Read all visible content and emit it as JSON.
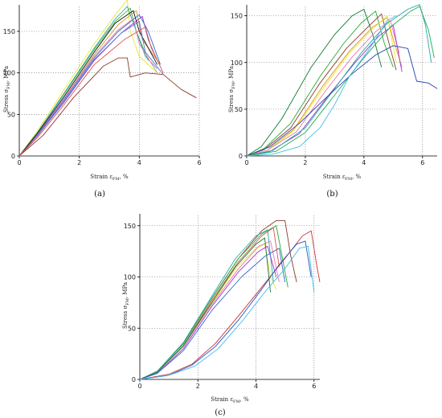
{
  "chart_data": [
    {
      "panel": "(a)",
      "type": "line",
      "xlabel": "Strain ε_FM, %",
      "ylabel": "Stress σ_FM, MPa",
      "xlim": [
        0,
        6
      ],
      "ylim": [
        0,
        180
      ],
      "xticks": [
        0,
        2,
        4,
        6
      ],
      "yticks": [
        0,
        50,
        100,
        150
      ],
      "grid": true,
      "series": [
        {
          "color": "#e8e830",
          "x": [
            0,
            0.6,
            1.5,
            2.5,
            3.2,
            3.6,
            3.7,
            4.0,
            4.6
          ],
          "y": [
            0,
            30,
            80,
            135,
            170,
            188,
            150,
            120,
            100
          ]
        },
        {
          "color": "#44aa44",
          "x": [
            0,
            0.6,
            1.5,
            2.5,
            3.2,
            3.7,
            3.9,
            4.3
          ],
          "y": [
            0,
            28,
            75,
            128,
            162,
            178,
            150,
            115
          ]
        },
        {
          "color": "#cc9922",
          "x": [
            0,
            0.6,
            1.5,
            2.5,
            3.3,
            3.9,
            4.1,
            4.7
          ],
          "y": [
            0,
            26,
            70,
            122,
            158,
            175,
            140,
            110
          ]
        },
        {
          "color": "#22aaaa",
          "x": [
            0,
            0.6,
            1.5,
            2.5,
            3.2,
            3.6,
            3.8,
            4.2,
            4.6
          ],
          "y": [
            0,
            28,
            76,
            130,
            165,
            180,
            160,
            120,
            105
          ]
        },
        {
          "color": "#3366cc",
          "x": [
            0,
            0.6,
            1.5,
            2.5,
            3.3,
            4.0,
            4.3,
            4.7
          ],
          "y": [
            0,
            25,
            68,
            118,
            150,
            170,
            150,
            110
          ]
        },
        {
          "color": "#9933cc",
          "x": [
            0,
            0.6,
            1.5,
            2.5,
            3.4,
            4.1,
            4.3,
            4.6
          ],
          "y": [
            0,
            24,
            65,
            115,
            148,
            168,
            140,
            115
          ]
        },
        {
          "color": "#ee77aa",
          "x": [
            0,
            0.6,
            1.5,
            2.5,
            3.3,
            3.8,
            4.0,
            4.6
          ],
          "y": [
            0,
            26,
            70,
            120,
            152,
            165,
            135,
            100
          ]
        },
        {
          "color": "#111111",
          "x": [
            0,
            0.6,
            1.5,
            2.5,
            3.2,
            3.8,
            4.0,
            4.6
          ],
          "y": [
            0,
            27,
            72,
            125,
            160,
            175,
            150,
            110
          ]
        },
        {
          "color": "#8b3a2a",
          "x": [
            0,
            0.8,
            1.8,
            2.8,
            3.3,
            3.6,
            3.7,
            4.2,
            4.8,
            5.4,
            5.9
          ],
          "y": [
            0,
            25,
            70,
            108,
            118,
            118,
            95,
            100,
            98,
            80,
            70
          ]
        },
        {
          "color": "#5577dd",
          "x": [
            0,
            0.6,
            1.5,
            2.5,
            3.4,
            4.0,
            4.2,
            4.8
          ],
          "y": [
            0,
            24,
            66,
            116,
            148,
            162,
            125,
            98
          ]
        },
        {
          "color": "#dd5544",
          "x": [
            0,
            0.6,
            1.5,
            2.5,
            3.5,
            4.2,
            4.4,
            4.8
          ],
          "y": [
            0,
            22,
            62,
            110,
            140,
            155,
            130,
            100
          ]
        }
      ]
    },
    {
      "panel": "(b)",
      "type": "line",
      "xlabel": "Strain ε_FM, %",
      "ylabel": "Stress σ_FM, MPa",
      "xlim": [
        0,
        6.5
      ],
      "ylim": [
        0,
        160
      ],
      "xticks": [
        0,
        2,
        4,
        6
      ],
      "yticks": [
        0,
        50,
        100,
        150
      ],
      "grid": true,
      "series": [
        {
          "color": "#117733",
          "x": [
            0,
            0.5,
            1.2,
            2.2,
            3.0,
            3.6,
            4.0,
            4.3,
            4.6
          ],
          "y": [
            0,
            10,
            40,
            95,
            130,
            150,
            157,
            130,
            95
          ]
        },
        {
          "color": "#22aa33",
          "x": [
            0,
            0.6,
            1.5,
            2.5,
            3.3,
            3.9,
            4.4,
            4.7,
            5.0
          ],
          "y": [
            0,
            8,
            35,
            85,
            120,
            142,
            155,
            120,
            95
          ]
        },
        {
          "color": "#8b3a2a",
          "x": [
            0,
            0.6,
            1.5,
            2.5,
            3.4,
            4.2,
            4.6,
            4.9,
            5.1
          ],
          "y": [
            0,
            7,
            30,
            78,
            115,
            140,
            152,
            115,
            92
          ]
        },
        {
          "color": "#dd9922",
          "x": [
            0,
            0.7,
            1.6,
            2.6,
            3.5,
            4.3,
            4.8,
            5.0,
            5.3
          ],
          "y": [
            0,
            6,
            28,
            75,
            112,
            138,
            148,
            125,
            95
          ]
        },
        {
          "color": "#e8e830",
          "x": [
            0,
            0.7,
            1.6,
            2.6,
            3.5,
            4.3,
            4.8,
            5.1
          ],
          "y": [
            0,
            6,
            27,
            72,
            110,
            136,
            150,
            100
          ]
        },
        {
          "color": "#ee77aa",
          "x": [
            0,
            0.7,
            1.7,
            2.7,
            3.6,
            4.4,
            4.9,
            5.2
          ],
          "y": [
            0,
            6,
            26,
            70,
            106,
            133,
            145,
            110
          ]
        },
        {
          "color": "#9933cc",
          "x": [
            0,
            0.8,
            1.8,
            2.8,
            3.7,
            4.5,
            5.0,
            5.3
          ],
          "y": [
            0,
            5,
            24,
            65,
            100,
            128,
            140,
            90
          ]
        },
        {
          "color": "#22aaaa",
          "x": [
            0,
            0.9,
            2.0,
            3.0,
            3.9,
            4.8,
            5.5,
            5.9,
            6.1,
            6.3
          ],
          "y": [
            0,
            6,
            30,
            72,
            110,
            142,
            157,
            162,
            140,
            100
          ]
        },
        {
          "color": "#22aa55",
          "x": [
            0,
            1.0,
            2.0,
            3.0,
            4.0,
            4.9,
            5.6,
            5.9,
            6.2,
            6.4
          ],
          "y": [
            0,
            5,
            25,
            65,
            105,
            138,
            155,
            160,
            135,
            105
          ]
        },
        {
          "color": "#2244aa",
          "x": [
            0,
            0.8,
            1.8,
            2.8,
            3.6,
            4.4,
            5.0,
            5.5,
            5.8,
            6.2,
            6.5
          ],
          "y": [
            0,
            10,
            35,
            65,
            88,
            108,
            118,
            115,
            80,
            78,
            72
          ]
        },
        {
          "color": "#44bbee",
          "x": [
            0,
            0.9,
            1.8,
            2.5,
            3.0,
            3.5,
            4.2,
            4.8,
            5.1
          ],
          "y": [
            0,
            2,
            10,
            30,
            55,
            85,
            115,
            145,
            150
          ]
        }
      ]
    },
    {
      "panel": "(c)",
      "type": "line",
      "xlabel": "Strain ε_FM, %",
      "ylabel": "Stress σ_FM, MPa",
      "xlim": [
        0,
        6.2
      ],
      "ylim": [
        0,
        160
      ],
      "xticks": [
        0,
        2,
        4,
        6
      ],
      "yticks": [
        0,
        50,
        100,
        150
      ],
      "grid": true,
      "series": [
        {
          "color": "#8b3a2a",
          "x": [
            0,
            0.6,
            1.5,
            2.5,
            3.4,
            4.2,
            4.7,
            5.0,
            5.2,
            5.4
          ],
          "y": [
            0,
            8,
            35,
            80,
            118,
            145,
            155,
            155,
            120,
            95
          ]
        },
        {
          "color": "#22aa33",
          "x": [
            0,
            0.6,
            1.5,
            2.5,
            3.4,
            4.2,
            4.7,
            4.9,
            5.1
          ],
          "y": [
            0,
            8,
            35,
            80,
            118,
            142,
            150,
            120,
            90
          ]
        },
        {
          "color": "#dd5544",
          "x": [
            0,
            0.6,
            1.5,
            2.5,
            3.4,
            4.2,
            4.6,
            4.8
          ],
          "y": [
            0,
            7,
            33,
            78,
            115,
            140,
            148,
            110
          ]
        },
        {
          "color": "#22aaaa",
          "x": [
            0,
            0.6,
            1.5,
            2.5,
            3.3,
            4.0,
            4.4,
            4.6
          ],
          "y": [
            0,
            8,
            36,
            82,
            118,
            140,
            146,
            95
          ]
        },
        {
          "color": "#e8e830",
          "x": [
            0,
            0.6,
            1.5,
            2.5,
            3.3,
            4.0,
            4.3,
            4.5,
            4.7
          ],
          "y": [
            0,
            7,
            32,
            75,
            108,
            128,
            132,
            100,
            88
          ]
        },
        {
          "color": "#ee77aa",
          "x": [
            0,
            0.6,
            1.5,
            2.5,
            3.4,
            4.1,
            4.5,
            4.8
          ],
          "y": [
            0,
            7,
            32,
            74,
            108,
            130,
            135,
            95
          ]
        },
        {
          "color": "#117733",
          "x": [
            0,
            0.6,
            1.5,
            2.5,
            3.3,
            4.0,
            4.3,
            4.5
          ],
          "y": [
            0,
            7,
            33,
            76,
            110,
            132,
            138,
            85
          ]
        },
        {
          "color": "#9933cc",
          "x": [
            0,
            0.6,
            1.5,
            2.5,
            3.4,
            4.1,
            4.4,
            4.7
          ],
          "y": [
            0,
            6,
            30,
            72,
            105,
            125,
            130,
            100
          ]
        },
        {
          "color": "#3366cc",
          "x": [
            0,
            0.6,
            1.5,
            2.5,
            3.5,
            4.3,
            4.8,
            5.0
          ],
          "y": [
            0,
            6,
            28,
            68,
            100,
            120,
            128,
            95
          ]
        },
        {
          "color": "#cc3333",
          "x": [
            0,
            1.0,
            1.8,
            2.6,
            3.4,
            4.2,
            5.0,
            5.6,
            5.9,
            6.1,
            6.2
          ],
          "y": [
            0,
            5,
            15,
            35,
            62,
            90,
            118,
            140,
            145,
            110,
            95
          ]
        },
        {
          "color": "#2255bb",
          "x": [
            0,
            1.0,
            1.8,
            2.6,
            3.4,
            4.2,
            4.8,
            5.4,
            5.7,
            5.9
          ],
          "y": [
            0,
            4,
            14,
            32,
            58,
            88,
            112,
            132,
            135,
            100
          ]
        },
        {
          "color": "#44bbee",
          "x": [
            0,
            1.0,
            1.9,
            2.7,
            3.5,
            4.3,
            5.0,
            5.5,
            5.8,
            6.0
          ],
          "y": [
            0,
            4,
            13,
            30,
            56,
            85,
            108,
            128,
            130,
            85
          ]
        }
      ]
    }
  ]
}
